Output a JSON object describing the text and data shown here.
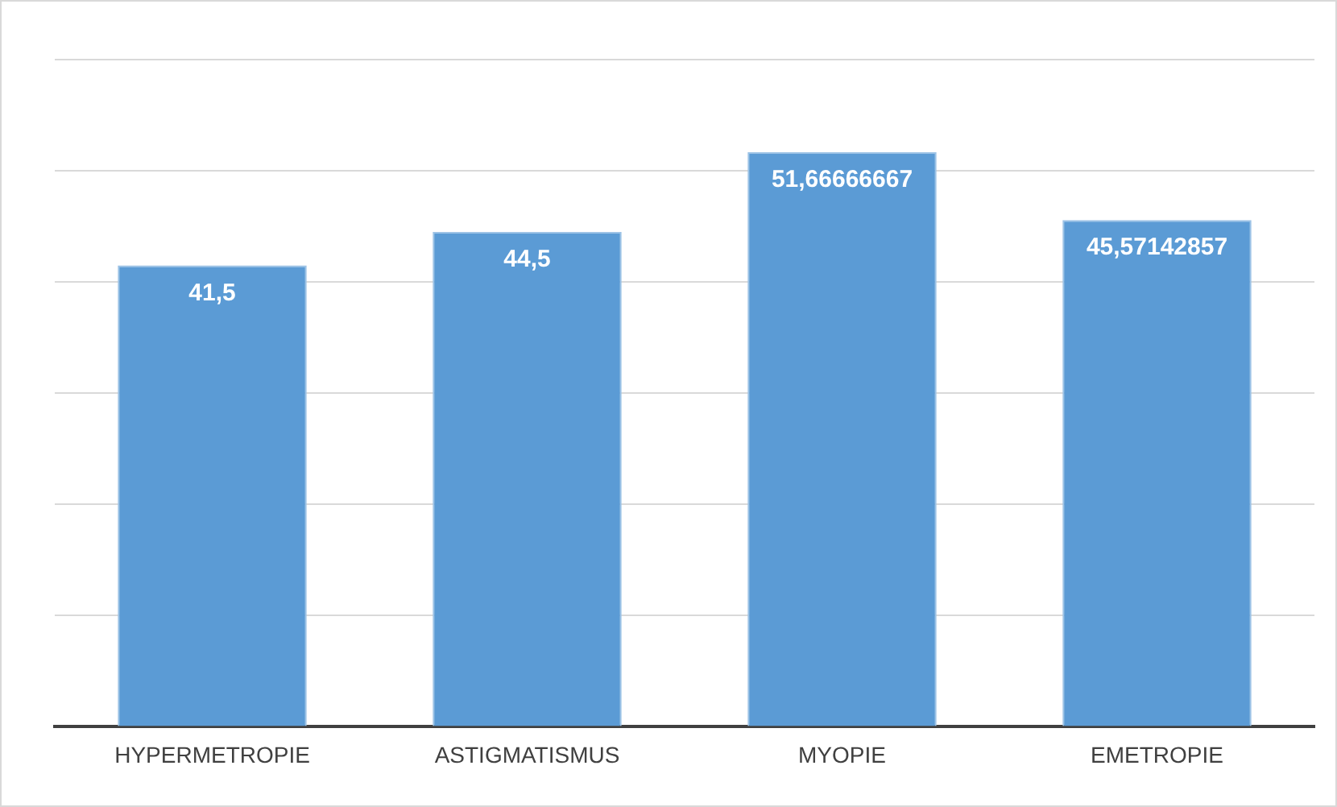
{
  "chart_data": {
    "type": "bar",
    "categories": [
      "HYPERMETROPIE",
      "ASTIGMATISMUS",
      "MYOPIE",
      "EMETROPIE"
    ],
    "values": [
      41.5,
      44.5,
      51.66666667,
      45.57142857
    ],
    "value_labels": [
      "41,5",
      "44,5",
      "51,66666667",
      "45,57142857"
    ],
    "color": "#5b9bd5",
    "ylim": [
      0,
      60
    ],
    "yticks": [
      {
        "value": 0,
        "label": null
      },
      {
        "value": 10,
        "label": null
      },
      {
        "value": 20,
        "label": null
      },
      {
        "value": 30,
        "label": null
      },
      {
        "value": 40,
        "label": null
      },
      {
        "value": 50,
        "label": null
      },
      {
        "value": 60,
        "label": null
      }
    ],
    "grid": "y",
    "tick_labels": "x",
    "legend": false
  }
}
